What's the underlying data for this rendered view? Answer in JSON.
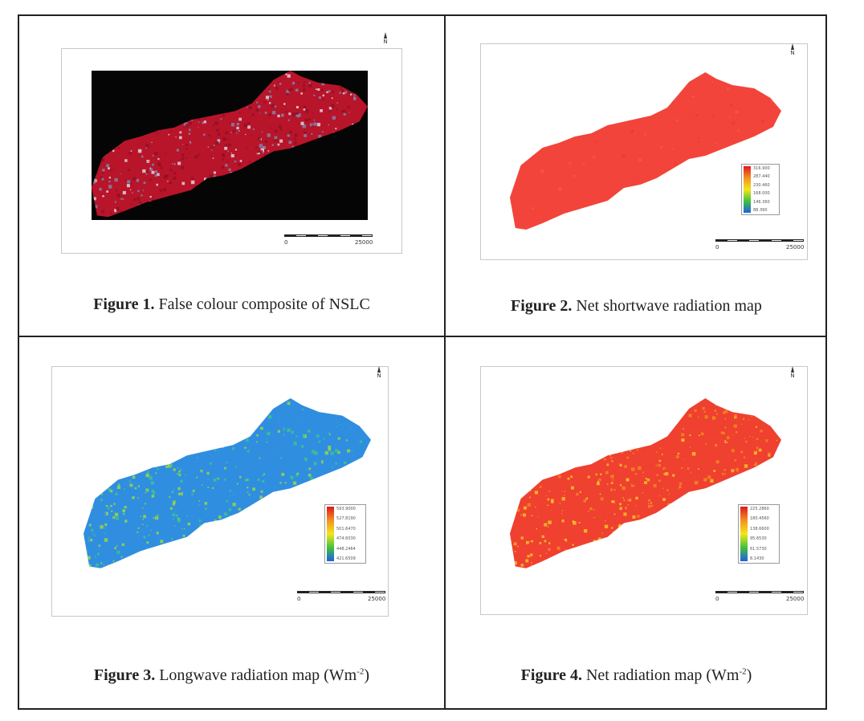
{
  "figures": [
    {
      "label": "Figure 1.",
      "caption": "False colour composite of NSLC",
      "caption_sup": "",
      "caption_tail": "",
      "scale_labels": [
        "0",
        "25000"
      ],
      "legend_ticks": [],
      "palette": {
        "background": "#050505",
        "base": "#b8142a",
        "highlight": "#e6ecf5",
        "accent": "#7d8fb8"
      }
    },
    {
      "label": "Figure 2.",
      "caption": "Net shortwave radiation map",
      "caption_sup": "",
      "caption_tail": "",
      "scale_labels": [
        "0",
        "25000"
      ],
      "legend_ticks": [
        "316.900",
        "287.440",
        "230.460",
        "168.000",
        "146.360",
        "88.390"
      ],
      "palette": {
        "base": "#f2443a",
        "ramp": [
          "#e01620",
          "#f39020",
          "#f4e51c",
          "#3fc33a",
          "#1e5ee6"
        ]
      }
    },
    {
      "label": "Figure 3.",
      "caption": "Longwave radiation map (Wm",
      "caption_sup": "-2",
      "caption_tail": ")",
      "scale_labels": [
        "0",
        "25000"
      ],
      "legend_ticks": [
        "593.9000",
        "527.8190",
        "501.6470",
        "474.6030",
        "448.2464",
        "421.6509"
      ],
      "palette": {
        "base": "#2f8ee0",
        "mid": "#3ec48c",
        "high": "#9fdb3c",
        "ramp": [
          "#e01620",
          "#f39020",
          "#f4e51c",
          "#3fc33a",
          "#1e5ee6"
        ]
      }
    },
    {
      "label": "Figure 4.",
      "caption": "Net radiation map (Wm",
      "caption_sup": "-2",
      "caption_tail": ")",
      "scale_labels": [
        "0",
        "25000"
      ],
      "legend_ticks": [
        "225.2860",
        "180.4560",
        "138.6600",
        "95.6530",
        "61.5730",
        "8.1430"
      ],
      "palette": {
        "base": "#ef4030",
        "mid": "#f28a22",
        "high": "#f5c82a",
        "ramp": [
          "#e01620",
          "#f39020",
          "#f4e51c",
          "#3fc33a",
          "#1e5ee6"
        ]
      }
    }
  ]
}
